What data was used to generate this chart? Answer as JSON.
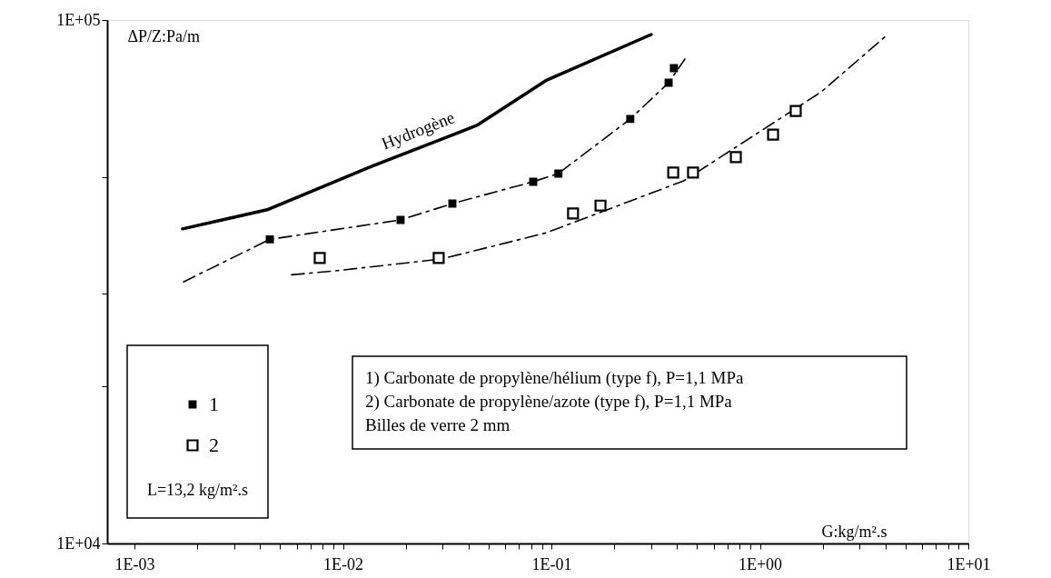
{
  "chart_data": {
    "type": "scatter",
    "xlabel": "G:kg/m².s",
    "ylabel": "ΔP/Z:Pa/m",
    "legend_title": "L=13,2 kg/m².s",
    "annotations": [
      "1) Carbonate de propylène/hélium (type f), P=1,1 MPa",
      "2) Carbonate de propylène/azote (type f), P=1,1 MPa",
      "Billes de verre 2 mm"
    ],
    "log": "xy",
    "grid": false,
    "legend": "bottom left",
    "xlim": [
      0.00074,
      10
    ],
    "ylim": [
      10000,
      100000
    ],
    "xticks": [
      {
        "value": 0.001,
        "label": "1E-03"
      },
      {
        "value": 0.002,
        "label": null
      },
      {
        "value": 0.003,
        "label": null
      },
      {
        "value": 0.004,
        "label": null
      },
      {
        "value": 0.005,
        "label": null
      },
      {
        "value": 0.006,
        "label": null
      },
      {
        "value": 0.007,
        "label": null
      },
      {
        "value": 0.008,
        "label": null
      },
      {
        "value": 0.009,
        "label": null
      },
      {
        "value": 0.01,
        "label": "1E-02"
      },
      {
        "value": 0.02,
        "label": null
      },
      {
        "value": 0.03,
        "label": null
      },
      {
        "value": 0.04,
        "label": null
      },
      {
        "value": 0.05,
        "label": null
      },
      {
        "value": 0.06,
        "label": null
      },
      {
        "value": 0.07,
        "label": null
      },
      {
        "value": 0.08,
        "label": null
      },
      {
        "value": 0.09,
        "label": null
      },
      {
        "value": 0.1,
        "label": "1E-01"
      },
      {
        "value": 0.2,
        "label": null
      },
      {
        "value": 0.3,
        "label": null
      },
      {
        "value": 0.4,
        "label": null
      },
      {
        "value": 0.5,
        "label": null
      },
      {
        "value": 0.6,
        "label": null
      },
      {
        "value": 0.7,
        "label": null
      },
      {
        "value": 0.8,
        "label": null
      },
      {
        "value": 0.9,
        "label": null
      },
      {
        "value": 1,
        "label": "1E+00"
      },
      {
        "value": 2,
        "label": null
      },
      {
        "value": 3,
        "label": null
      },
      {
        "value": 4,
        "label": null
      },
      {
        "value": 5,
        "label": null
      },
      {
        "value": 6,
        "label": null
      },
      {
        "value": 7,
        "label": null
      },
      {
        "value": 8,
        "label": null
      },
      {
        "value": 9,
        "label": null
      },
      {
        "value": 10,
        "label": "1E+01"
      }
    ],
    "yticks": [
      {
        "value": 10000,
        "label": "1E+04"
      },
      {
        "value": 20000,
        "label": null
      },
      {
        "value": 30000,
        "label": null
      },
      {
        "value": 50000,
        "label": null
      },
      {
        "value": 100000,
        "label": "1E+05"
      }
    ],
    "series": [
      {
        "name": "Hydrogène",
        "type": "line",
        "line_style": "solid",
        "color": "#000000",
        "x": [
          0.0017,
          0.00433,
          0.0137,
          0.0439,
          0.0951,
          0.301
        ],
        "values": [
          39900,
          43400,
          52500,
          62900,
          76800,
          93800
        ]
      },
      {
        "type": "line",
        "line_style": "dashed",
        "color": "#000000",
        "x": [
          0.00172,
          0.00446,
          0.0189,
          0.0335,
          0.0818,
          0.108,
          0.239,
          0.365,
          0.437
        ],
        "values": [
          31600,
          38100,
          41500,
          44600,
          49100,
          50900,
          64700,
          75900,
          84200
        ]
      },
      {
        "type": "line",
        "line_style": "dashed",
        "color": "#000000",
        "x": [
          0.00567,
          0.00937,
          0.0297,
          0.0942,
          0.432,
          1.97,
          4.01
        ],
        "values": [
          32600,
          33200,
          34950,
          39200,
          49300,
          72900,
          93100
        ]
      },
      {
        "name": "1",
        "marker": "square",
        "color": "#000000",
        "x": [
          0.00446,
          0.0189,
          0.0335,
          0.0818,
          0.108,
          0.239,
          0.365,
          0.387
        ],
        "values": [
          38100,
          41500,
          44600,
          49100,
          50900,
          64700,
          75900,
          80900
        ]
      },
      {
        "name": "2",
        "marker": "square",
        "color": "#000000",
        "x": [
          0.00774,
          0.0288,
          0.127,
          0.172,
          0.384,
          0.478,
          0.767,
          1.157,
          1.486
        ],
        "values": [
          35100,
          35100,
          42700,
          44200,
          51100,
          51100,
          54700,
          60400,
          67000
        ]
      }
    ]
  }
}
